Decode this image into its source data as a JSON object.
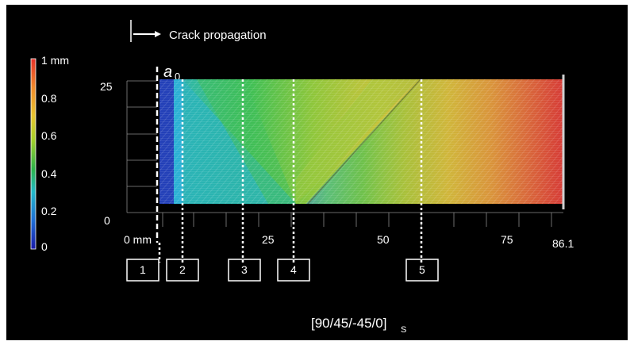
{
  "header": {
    "legend_text": "Crack propagation",
    "crack_length_label": "a",
    "crack_length_subscript": "0"
  },
  "colorbar": {
    "max_label": "1 mm",
    "ticks": [
      "0.8",
      "0.6",
      "0.4",
      "0.2",
      "0"
    ],
    "colors": [
      "#1a1aa8",
      "#1f6fd6",
      "#23b9c9",
      "#2db34a",
      "#a9d12a",
      "#e8c530",
      "#f08a2c",
      "#e6322a"
    ]
  },
  "y_axis": {
    "ticks": [
      "25",
      "0"
    ]
  },
  "x_axis": {
    "ticks": [
      "0 mm",
      "25",
      "50",
      "75",
      "86.1"
    ]
  },
  "markers": {
    "labels": [
      "1",
      "2",
      "3",
      "4",
      "5"
    ]
  },
  "caption": {
    "main": "[90/45/-45/0]",
    "subscript": "S"
  }
}
